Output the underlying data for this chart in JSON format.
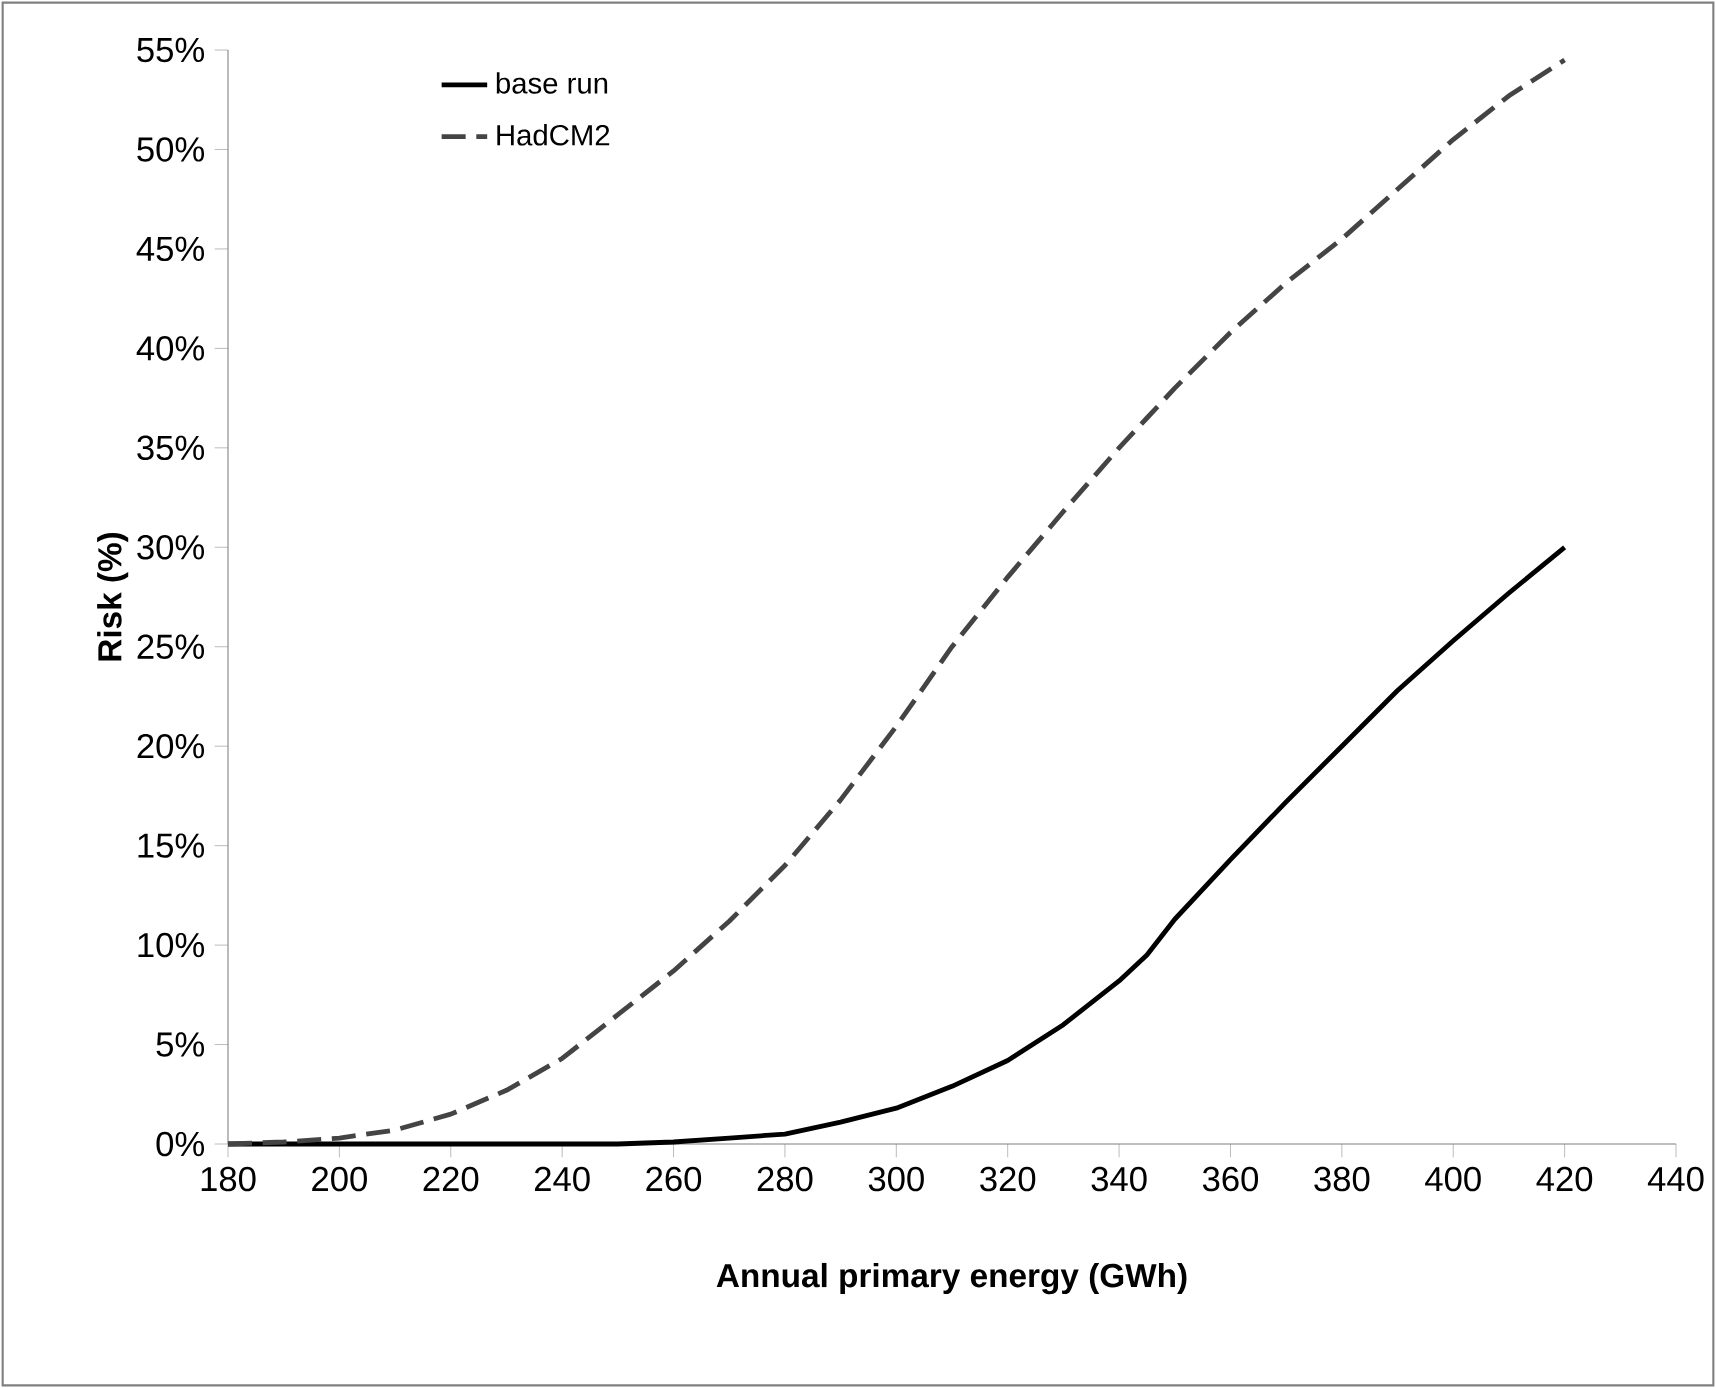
{
  "chart_data": {
    "type": "line",
    "xlabel": "Annual primary energy (GWh)",
    "ylabel": "Risk (%)",
    "x": [
      180,
      190,
      200,
      210,
      220,
      230,
      240,
      250,
      260,
      270,
      280,
      290,
      300,
      310,
      320,
      330,
      340,
      345,
      350,
      360,
      370,
      380,
      390,
      400,
      410,
      420
    ],
    "series": [
      {
        "name": "base run",
        "color": "#000000",
        "line_style": "solid",
        "values": [
          0,
          0,
          0,
          0,
          0,
          0,
          0,
          0,
          0.1,
          0.3,
          0.5,
          1.1,
          1.8,
          2.9,
          4.2,
          6,
          8.2,
          9.5,
          11.3,
          14.3,
          17.2,
          20,
          22.8,
          25.3,
          27.7,
          30
        ]
      },
      {
        "name": "HadCM2",
        "color": "#444444",
        "line_style": "dashed",
        "values": [
          0,
          0.1,
          0.3,
          0.7,
          1.5,
          2.7,
          4.3,
          6.5,
          8.7,
          11.2,
          14,
          17.3,
          21,
          25,
          28.5,
          31.8,
          35,
          36.5,
          38,
          40.8,
          43.3,
          45.5,
          48,
          50.5,
          52.7,
          54.5
        ]
      }
    ],
    "xlim": [
      180,
      440
    ],
    "xticks": [
      180,
      200,
      220,
      240,
      260,
      280,
      300,
      320,
      340,
      360,
      380,
      400,
      420,
      440
    ],
    "ylim": [
      0,
      55
    ],
    "yticks": [
      {
        "value": 0,
        "label": "0%"
      },
      {
        "value": 5,
        "label": "5%"
      },
      {
        "value": 10,
        "label": "10%"
      },
      {
        "value": 15,
        "label": "15%"
      },
      {
        "value": 20,
        "label": "20%"
      },
      {
        "value": 25,
        "label": "25%"
      },
      {
        "value": 30,
        "label": "30%"
      },
      {
        "value": 35,
        "label": "35%"
      },
      {
        "value": 40,
        "label": "40%"
      },
      {
        "value": 45,
        "label": "45%"
      },
      {
        "value": 50,
        "label": "50%"
      },
      {
        "value": 55,
        "label": "55%"
      }
    ],
    "legend": "top left",
    "grid": false
  }
}
